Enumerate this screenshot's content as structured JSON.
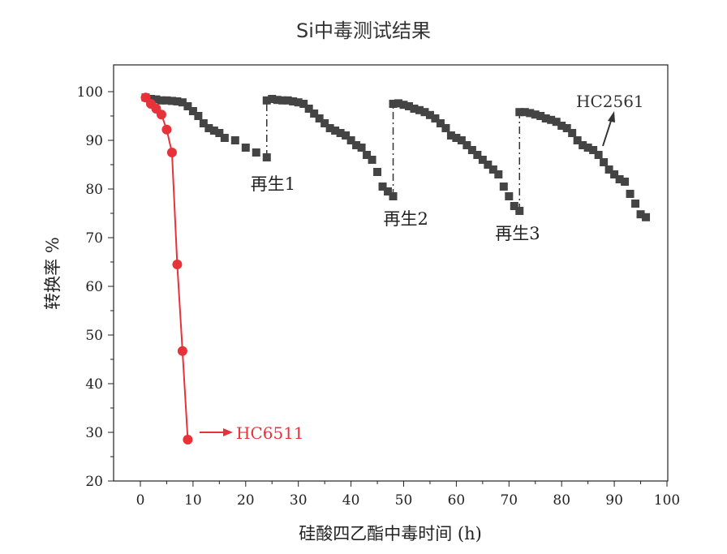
{
  "chart_data": {
    "type": "scatter",
    "title": "Si中毒测试结果",
    "xlabel": "硅酸四乙酯中毒时间 (h)",
    "ylabel": "转换率 %",
    "xlim": [
      -5,
      100
    ],
    "ylim": [
      20,
      105
    ],
    "xticks": [
      0,
      10,
      20,
      30,
      40,
      50,
      60,
      70,
      80,
      90,
      100
    ],
    "yticks": [
      20,
      30,
      40,
      50,
      60,
      70,
      80,
      90,
      100
    ],
    "grid": false,
    "series": [
      {
        "name": "HC2561",
        "color": "#444444",
        "marker": "square",
        "line": false,
        "x": [
          1,
          2,
          3,
          4,
          5,
          6,
          7,
          8,
          9,
          10,
          11,
          12,
          13,
          14,
          15,
          16,
          18,
          20,
          22,
          24,
          24,
          25,
          26,
          27,
          28,
          29,
          30,
          31,
          32,
          33,
          34,
          35,
          36,
          37,
          38,
          39,
          40,
          41,
          42,
          43,
          44,
          45,
          46,
          47,
          48,
          48,
          49,
          50,
          51,
          52,
          53,
          54,
          55,
          56,
          57,
          58,
          59,
          60,
          61,
          62,
          63,
          64,
          65,
          66,
          67,
          68,
          69,
          70,
          71,
          72,
          72,
          73,
          74,
          75,
          76,
          77,
          78,
          79,
          80,
          81,
          82,
          83,
          84,
          85,
          86,
          87,
          88,
          89,
          90,
          91,
          92,
          93,
          94,
          95,
          96
        ],
        "y": [
          98.8,
          98.5,
          98.4,
          98.2,
          98.2,
          98.1,
          98,
          97.8,
          97,
          96,
          95,
          93.5,
          92.5,
          92,
          91.5,
          90.5,
          90,
          88.5,
          87.5,
          86.5,
          98.2,
          98.5,
          98.3,
          98.2,
          98.2,
          98,
          97.8,
          97.5,
          96.5,
          95.5,
          94.5,
          93.5,
          92.5,
          92,
          91.5,
          91,
          90,
          89,
          88.5,
          87,
          86,
          83.5,
          80.5,
          79.5,
          78.5,
          97.5,
          97.6,
          97.3,
          97,
          96.5,
          96.2,
          95.8,
          95.2,
          94.5,
          93.5,
          92.5,
          91,
          90.5,
          90,
          89,
          88,
          87,
          86,
          85,
          84,
          83,
          80.5,
          78.5,
          76.5,
          75.5,
          95.8,
          95.8,
          95.6,
          95.3,
          95,
          94.5,
          94.2,
          93.8,
          93,
          92.5,
          91.5,
          90,
          89,
          88.5,
          88,
          87,
          85.5,
          84,
          83,
          82,
          81.5,
          79,
          77,
          74.8,
          74.2
        ]
      },
      {
        "name": "HC6511",
        "color": "#e8323a",
        "marker": "circle",
        "line": true,
        "x": [
          1,
          2,
          3,
          4,
          5,
          6,
          7,
          8,
          9
        ],
        "y": [
          98.8,
          97.5,
          96.5,
          95.3,
          92.2,
          87.5,
          64.5,
          46.7,
          28.5
        ]
      }
    ],
    "regeneration_lines": [
      {
        "x": 24,
        "from": 86.5,
        "to": 98.2,
        "label": "再生1"
      },
      {
        "x": 48,
        "from": 78.5,
        "to": 97.5,
        "label": "再生2"
      },
      {
        "x": 72,
        "from": 75.5,
        "to": 95.8,
        "label": "再生3"
      }
    ],
    "annotations": [
      {
        "text": "HC2561",
        "color": "#333333"
      },
      {
        "text": "HC6511",
        "color": "#e8323a"
      }
    ]
  }
}
